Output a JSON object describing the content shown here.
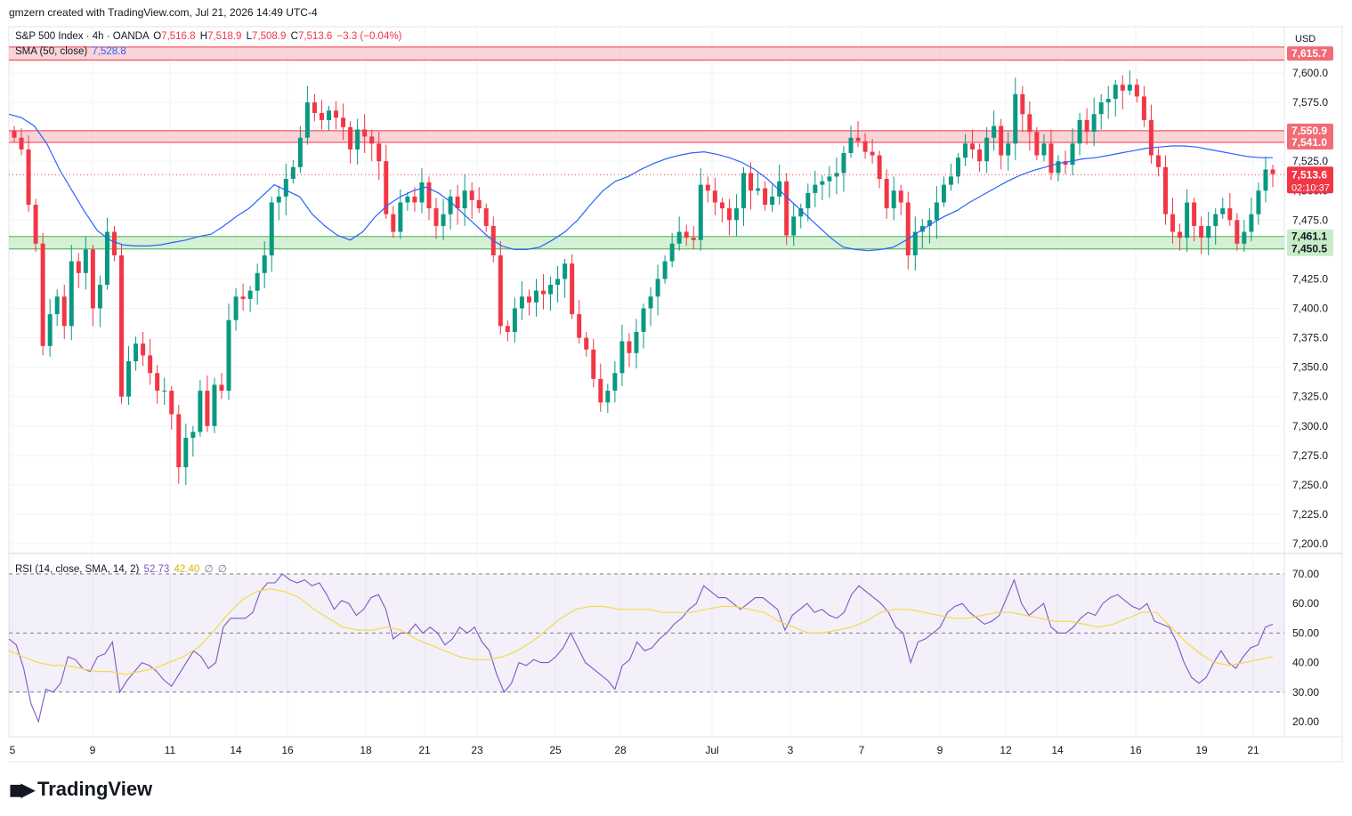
{
  "header": {
    "created_by": "gmzern created with TradingView.com, Jul 21, 2026 14:49 UTC-4"
  },
  "legend": {
    "symbol": "S&P 500 Index · 4h · OANDA",
    "o_label": "O",
    "o_value": "7,516.8",
    "h_label": "H",
    "h_value": "7,518.9",
    "l_label": "L",
    "l_value": "7,508.9",
    "c_label": "C",
    "c_value": "7,513.6",
    "change": "−3.3 (−0.04%)",
    "sma_label": "SMA (50, close)",
    "sma_value": "7,528.8",
    "rsi_label": "RSI (14, close, SMA, 14, 2)",
    "rsi_value": "52.73",
    "rsi_ma_value": "42.40",
    "rsi_extra1": "∅",
    "rsi_extra2": "∅"
  },
  "currency": "USD",
  "logo_text": "TradingView",
  "colors": {
    "up": "#089981",
    "down": "#f23645",
    "sma": "#2962ff",
    "rsi": "#7e57c2",
    "rsi_ma": "#f5d94a",
    "resistance_zone": "#f7b7bc",
    "support_zone": "#b9e6b9"
  },
  "chart_data": {
    "type": "candlestick",
    "price_axis": {
      "ticks": [
        "7,200.0",
        "7,225.0",
        "7,250.0",
        "7,275.0",
        "7,300.0",
        "7,325.0",
        "7,350.0",
        "7,375.0",
        "7,400.0",
        "7,425.0",
        "7,450.0",
        "7,475.0",
        "7,500.0",
        "7,525.0",
        "7,550.0",
        "7,575.0",
        "7,600.0"
      ],
      "range": [
        7190,
        7630
      ]
    },
    "time_axis": {
      "labels": [
        "5",
        "9",
        "11",
        "14",
        "16",
        "18",
        "21",
        "23",
        "25",
        "28",
        "Jul",
        "3",
        "7",
        "9",
        "12",
        "14",
        "16",
        "19",
        "21"
      ]
    },
    "zones": [
      {
        "name": "resistance-top",
        "from": 7611,
        "to": 7622,
        "label": "7,615.7"
      },
      {
        "name": "resistance",
        "from": 7541.0,
        "to": 7550.9,
        "labels": [
          "7,550.9",
          "7,541.0"
        ]
      },
      {
        "name": "support",
        "from": 7450.5,
        "to": 7461.1,
        "labels": [
          "7,461.1",
          "7,450.5"
        ]
      }
    ],
    "last_price": {
      "value": 7513.6,
      "label": "7,513.6",
      "countdown": "02:10:37"
    },
    "close_series": [
      7545,
      7535,
      7488,
      7455,
      7368,
      7395,
      7410,
      7385,
      7440,
      7430,
      7450,
      7400,
      7420,
      7465,
      7445,
      7325,
      7355,
      7370,
      7360,
      7345,
      7330,
      7330,
      7310,
      7265,
      7290,
      7295,
      7330,
      7300,
      7335,
      7330,
      7390,
      7410,
      7408,
      7415,
      7430,
      7445,
      7490,
      7495,
      7510,
      7520,
      7545,
      7575,
      7566,
      7560,
      7568,
      7562,
      7554,
      7535,
      7552,
      7546,
      7540,
      7525,
      7480,
      7465,
      7490,
      7495,
      7490,
      7507,
      7485,
      7470,
      7480,
      7495,
      7485,
      7500,
      7492,
      7485,
      7470,
      7445,
      7385,
      7380,
      7400,
      7410,
      7405,
      7415,
      7412,
      7420,
      7425,
      7438,
      7395,
      7375,
      7365,
      7340,
      7320,
      7330,
      7345,
      7372,
      7362,
      7380,
      7400,
      7410,
      7425,
      7440,
      7455,
      7465,
      7460,
      7458,
      7505,
      7500,
      7490,
      7485,
      7475,
      7485,
      7515,
      7500,
      7502,
      7488,
      7495,
      7508,
      7462,
      7478,
      7485,
      7498,
      7505,
      7508,
      7512,
      7515,
      7532,
      7545,
      7542,
      7533,
      7530,
      7510,
      7485,
      7500,
      7490,
      7445,
      7465,
      7470,
      7475,
      7490,
      7505,
      7512,
      7528,
      7540,
      7535,
      7525,
      7545,
      7555,
      7530,
      7540,
      7582,
      7565,
      7550,
      7530,
      7540,
      7515,
      7525,
      7522,
      7540,
      7560,
      7550,
      7565,
      7575,
      7578,
      7590,
      7585,
      7590,
      7580,
      7560,
      7530,
      7520,
      7480,
      7465,
      7460,
      7490,
      7470,
      7460,
      7470,
      7480,
      7485,
      7475,
      7455,
      7465,
      7480,
      7500,
      7518,
      7514
    ],
    "sma_series": [
      7565,
      7562,
      7555,
      7540,
      7518,
      7500,
      7482,
      7466,
      7458,
      7454,
      7453,
      7453,
      7454,
      7456,
      7458,
      7461,
      7463,
      7470,
      7478,
      7485,
      7495,
      7505,
      7500,
      7495,
      7480,
      7470,
      7462,
      7458,
      7465,
      7478,
      7488,
      7495,
      7500,
      7503,
      7498,
      7490,
      7480,
      7470,
      7460,
      7453,
      7450,
      7450,
      7452,
      7458,
      7465,
      7475,
      7488,
      7500,
      7508,
      7512,
      7518,
      7523,
      7527,
      7530,
      7532,
      7533,
      7531,
      7528,
      7524,
      7518,
      7510,
      7500,
      7490,
      7480,
      7470,
      7460,
      7452,
      7450,
      7449,
      7450,
      7452,
      7458,
      7465,
      7472,
      7478,
      7483,
      7490,
      7496,
      7502,
      7508,
      7513,
      7517,
      7520,
      7523,
      7525,
      7527,
      7528,
      7530,
      7532,
      7534,
      7536,
      7537,
      7538,
      7538,
      7537,
      7535,
      7533,
      7531,
      7529,
      7528,
      7528
    ],
    "rsi_series": [
      48,
      46,
      38,
      26,
      20,
      31,
      30,
      33,
      42,
      41,
      38,
      37,
      42,
      43,
      47,
      30,
      34,
      37,
      40,
      39,
      37,
      34,
      32,
      36,
      40,
      44,
      42,
      38,
      40,
      52,
      55,
      55,
      55,
      57,
      64,
      67,
      67,
      70,
      68,
      67,
      68,
      66,
      67,
      63,
      58,
      61,
      60,
      56,
      58,
      62,
      63,
      58,
      48,
      50,
      50,
      53,
      50,
      52,
      50,
      46,
      48,
      52,
      50,
      52,
      47,
      44,
      36,
      30,
      33,
      40,
      39,
      41,
      40,
      40,
      42,
      45,
      50,
      45,
      40,
      38,
      36,
      34,
      31,
      39,
      41,
      47,
      44,
      45,
      48,
      50,
      53,
      55,
      58,
      60,
      66,
      64,
      62,
      62,
      60,
      58,
      60,
      62,
      62,
      60,
      58,
      51,
      56,
      58,
      60,
      57,
      58,
      56,
      55,
      57,
      63,
      66,
      64,
      62,
      60,
      57,
      52,
      50,
      40,
      47,
      48,
      50,
      52,
      57,
      59,
      60,
      57,
      55,
      53,
      54,
      56,
      62,
      68,
      60,
      56,
      58,
      60,
      52,
      50,
      50,
      52,
      55,
      57,
      56,
      60,
      62,
      63,
      61,
      59,
      58,
      60,
      54,
      53,
      52,
      47,
      40,
      35,
      33,
      35,
      40,
      44,
      40,
      38,
      42,
      45,
      46,
      52,
      53
    ],
    "rsi_ma_series": [
      44,
      42,
      40,
      39,
      39,
      38,
      37,
      37,
      36,
      37,
      38,
      40,
      42,
      45,
      50,
      56,
      61,
      64,
      65,
      64,
      62,
      58,
      55,
      52,
      51,
      51,
      52,
      51,
      48,
      46,
      44,
      42,
      41,
      41,
      42,
      44,
      47,
      51,
      55,
      58,
      59,
      59,
      58,
      58,
      58,
      57,
      57,
      57,
      58,
      59,
      59,
      58,
      57,
      54,
      52,
      50,
      50,
      51,
      52,
      54,
      57,
      58,
      58,
      57,
      56,
      55,
      55,
      56,
      57,
      57,
      56,
      55,
      54,
      54,
      53,
      52,
      53,
      55,
      57,
      57,
      52,
      47,
      43,
      40,
      39,
      40,
      41,
      42
    ],
    "rsi_axis": {
      "ticks": [
        "20.00",
        "30.00",
        "40.00",
        "50.00",
        "60.00",
        "70.00"
      ],
      "upper": 70,
      "lower": 30,
      "mid": 50
    }
  }
}
